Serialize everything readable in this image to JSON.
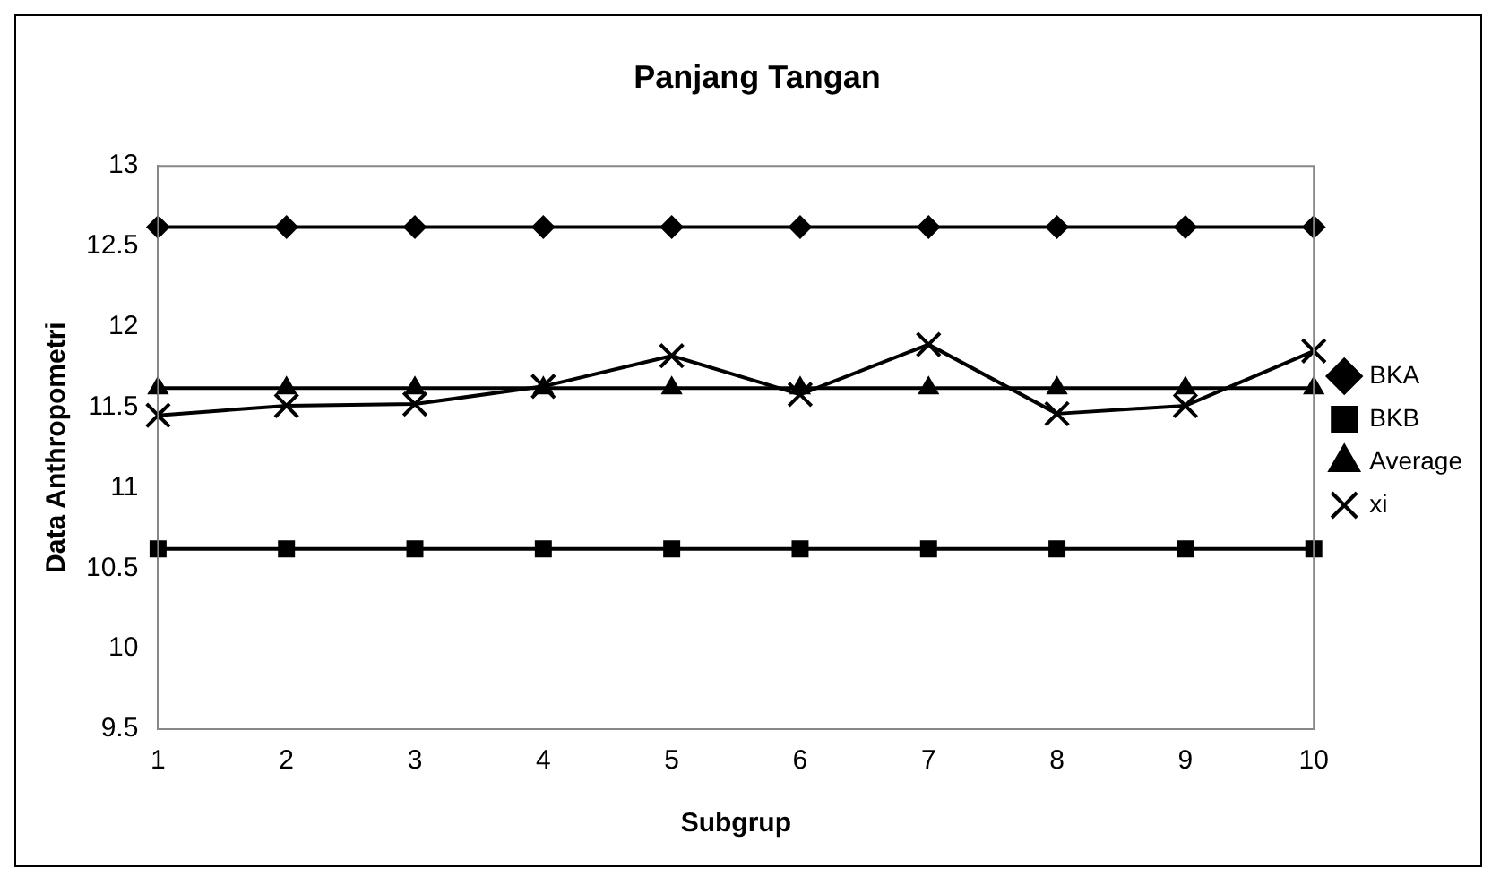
{
  "chart_data": {
    "type": "line",
    "title": "Panjang Tangan",
    "xlabel": "Subgrup",
    "ylabel": "Data Anthropometri",
    "categories": [
      "1",
      "2",
      "3",
      "4",
      "5",
      "6",
      "7",
      "8",
      "9",
      "10"
    ],
    "series": [
      {
        "name": "BKA",
        "color": "#000000",
        "marker": "diamond",
        "values": [
          12.62,
          12.62,
          12.62,
          12.62,
          12.62,
          12.62,
          12.62,
          12.62,
          12.62,
          12.62
        ]
      },
      {
        "name": "BKB",
        "color": "#000000",
        "marker": "square",
        "values": [
          10.62,
          10.62,
          10.62,
          10.62,
          10.62,
          10.62,
          10.62,
          10.62,
          10.62,
          10.62
        ]
      },
      {
        "name": "Average",
        "color": "#000000",
        "marker": "triangle",
        "values": [
          11.62,
          11.62,
          11.62,
          11.62,
          11.62,
          11.62,
          11.62,
          11.62,
          11.62,
          11.62
        ]
      },
      {
        "name": "xi",
        "color": "#000000",
        "marker": "cross",
        "values": [
          11.45,
          11.51,
          11.52,
          11.63,
          11.82,
          11.58,
          11.89,
          11.46,
          11.51,
          11.85
        ]
      }
    ],
    "ylim": [
      9.5,
      13
    ],
    "yticks": [
      9.5,
      10,
      10.5,
      11,
      11.5,
      12,
      12.5,
      13
    ],
    "grid": false,
    "legend": "right",
    "line_style": "solid"
  }
}
